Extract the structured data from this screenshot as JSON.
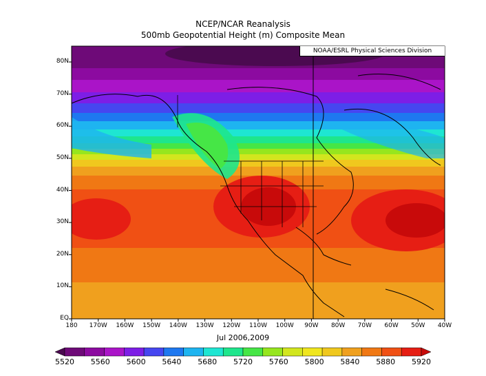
{
  "title_line1": "NCEP/NCAR Reanalysis",
  "title_line2": "500mb Geopotential Height (m) Composite Mean",
  "credit": "NOAA/ESRL Physical Sciences Division",
  "date_label": "Jul 2006,2009",
  "lat_labels": [
    "80N",
    "70N",
    "60N",
    "50N",
    "40N",
    "30N",
    "20N",
    "10N",
    "EQ"
  ],
  "lon_labels": [
    "180",
    "170W",
    "160W",
    "150W",
    "140W",
    "130W",
    "120W",
    "110W",
    "100W",
    "90W",
    "80W",
    "70W",
    "60W",
    "50W",
    "40W"
  ],
  "colorbar_labels": [
    "5520",
    "5560",
    "5600",
    "5640",
    "5680",
    "5720",
    "5760",
    "5800",
    "5840",
    "5880",
    "5920"
  ],
  "colorbar_colors": [
    "#4b0a50",
    "#6e0a78",
    "#8c0aa0",
    "#aa14c8",
    "#7d1ee6",
    "#4646f0",
    "#1e78f0",
    "#1eb4f0",
    "#1ee6d2",
    "#1ee68c",
    "#46e646",
    "#96e61e",
    "#d2e61e",
    "#f0e61e",
    "#f0c81e",
    "#f0a01e",
    "#f07814",
    "#f05014",
    "#e61e14",
    "#c80a0a"
  ],
  "chart_data": {
    "type": "heatmap",
    "variable": "500mb Geopotential Height (m)",
    "xlim": [
      -180,
      -40
    ],
    "ylim": [
      0,
      85
    ],
    "levels": [
      5520,
      5560,
      5600,
      5640,
      5680,
      5720,
      5760,
      5800,
      5840,
      5880,
      5920
    ],
    "max_centers": [
      {
        "lon": -108,
        "lat": 34,
        "value": 5920
      },
      {
        "lon": -50,
        "lat": 32,
        "value": 5910
      },
      {
        "lon": -175,
        "lat": 33,
        "value": 5890
      }
    ],
    "min_center": {
      "lon": -80,
      "lat": 83,
      "value": 5520
    }
  }
}
